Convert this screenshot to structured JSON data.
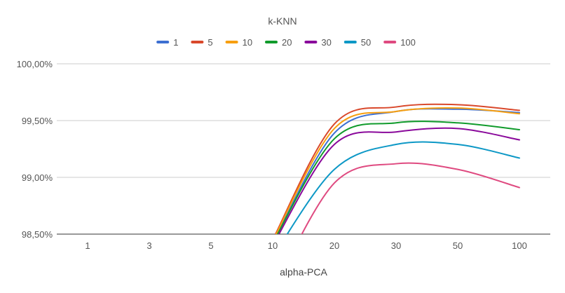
{
  "chart_data": {
    "type": "line",
    "title": "k-KNN",
    "xlabel": "alpha-PCA",
    "ylabel": "",
    "categories": [
      "1",
      "3",
      "5",
      "10",
      "20",
      "30",
      "50",
      "100"
    ],
    "y_ticks": [
      "98,50%",
      "99,00%",
      "99,50%",
      "100,00%"
    ],
    "ylim": [
      98.5,
      100.0
    ],
    "grid": true,
    "legend_position": "top",
    "series": [
      {
        "name": "1",
        "color": "#3c6fd1",
        "values": [
          null,
          null,
          null,
          98.42,
          99.39,
          99.58,
          99.6,
          99.57
        ]
      },
      {
        "name": "5",
        "color": "#d9482b",
        "values": [
          null,
          null,
          null,
          98.45,
          99.47,
          99.62,
          99.64,
          99.59
        ]
      },
      {
        "name": "10",
        "color": "#f79f10",
        "values": [
          null,
          null,
          null,
          98.44,
          99.43,
          99.58,
          99.61,
          99.56
        ]
      },
      {
        "name": "20",
        "color": "#119b2c",
        "values": [
          null,
          null,
          null,
          98.42,
          99.34,
          99.48,
          99.48,
          99.42
        ]
      },
      {
        "name": "30",
        "color": "#8a099b",
        "values": [
          null,
          null,
          null,
          98.4,
          99.29,
          99.4,
          99.43,
          99.33
        ]
      },
      {
        "name": "50",
        "color": "#0d98c6",
        "values": [
          null,
          null,
          null,
          98.3,
          99.07,
          99.29,
          99.29,
          99.17
        ]
      },
      {
        "name": "100",
        "color": "#df4a80",
        "values": [
          null,
          null,
          null,
          98.0,
          98.95,
          99.12,
          99.07,
          98.91
        ]
      }
    ]
  }
}
